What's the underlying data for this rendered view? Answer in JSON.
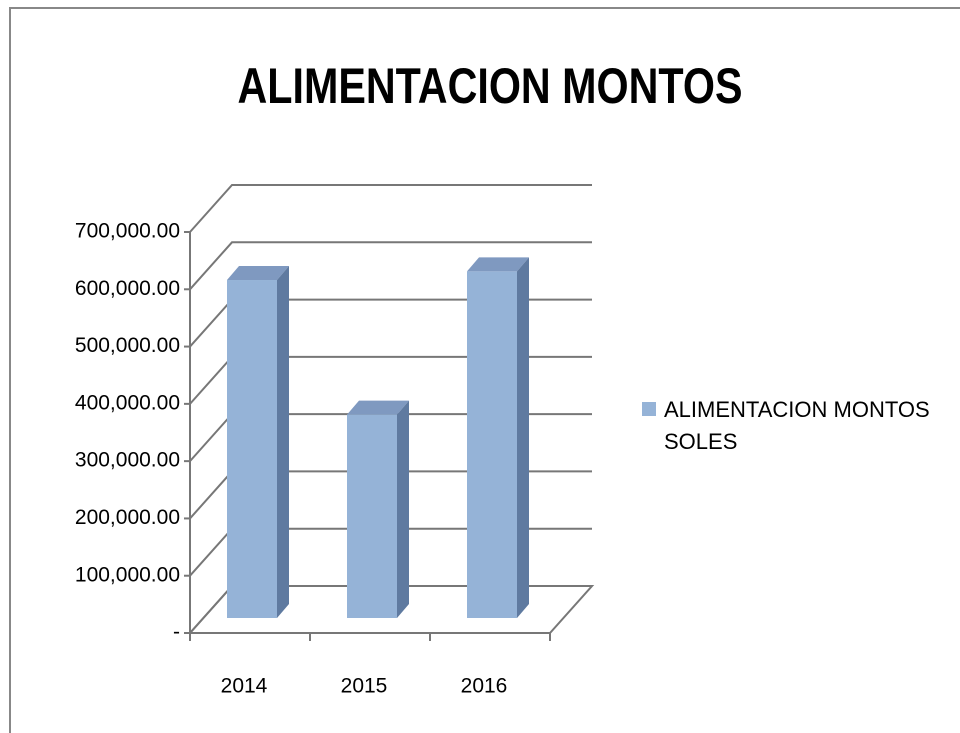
{
  "chart_data": {
    "type": "bar3d",
    "title": "ALIMENTACION MONTOS",
    "categories": [
      "2014",
      "2015",
      "2016"
    ],
    "series": [
      {
        "name": "ALIMENTACION MONTOS SOLES",
        "color": "#95b3d7",
        "values": [
          590000,
          355000,
          605000
        ]
      }
    ],
    "ylim": [
      0,
      700000
    ],
    "yticks": [
      {
        "value": 0,
        "label": "-"
      },
      {
        "value": 100000,
        "label": "100,000.00"
      },
      {
        "value": 200000,
        "label": "200,000.00"
      },
      {
        "value": 300000,
        "label": "300,000.00"
      },
      {
        "value": 400000,
        "label": "400,000.00"
      },
      {
        "value": 500000,
        "label": "500,000.00"
      },
      {
        "value": 600000,
        "label": "600,000.00"
      },
      {
        "value": 700000,
        "label": "700,000.00"
      }
    ],
    "grid": true,
    "legend": "right"
  }
}
